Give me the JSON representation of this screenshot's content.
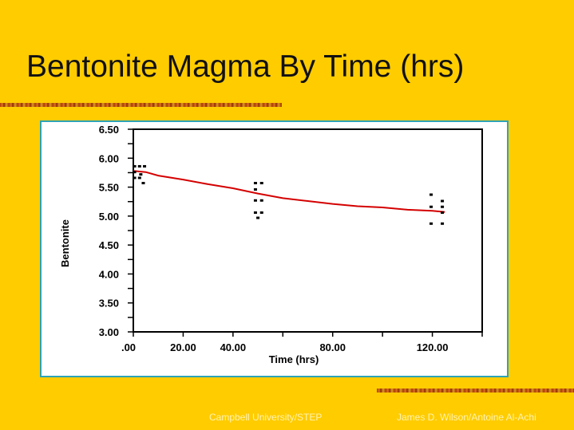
{
  "slide": {
    "title": "Bentonite Magma By Time (hrs)",
    "footer_left": "Campbell University/STEP",
    "footer_right": "James D. Wilson/Antoine Al-Achi"
  },
  "colors": {
    "background": "#FFCC00",
    "frame_border": "#2EA3B5",
    "fit_line": "#D40000",
    "points": "#000000"
  },
  "chart_data": {
    "type": "scatter",
    "xlabel": "Time (hrs)",
    "ylabel": "Bentonite",
    "xlim": [
      0,
      140
    ],
    "ylim": [
      3.0,
      6.5
    ],
    "x_tick_labels": [
      {
        "value": 0,
        "label": ".00"
      },
      {
        "value": 20,
        "label": "20.00"
      },
      {
        "value": 40,
        "label": "40.00"
      },
      {
        "value": 80,
        "label": "80.00"
      },
      {
        "value": 120,
        "label": "120.00"
      }
    ],
    "x_major_ticks": [
      0,
      20,
      40,
      60,
      80,
      100,
      120,
      140
    ],
    "y_tick_labels": [
      {
        "value": 6.5,
        "label": "6.50"
      },
      {
        "value": 6.0,
        "label": "6.00"
      },
      {
        "value": 5.5,
        "label": "5.50"
      },
      {
        "value": 5.0,
        "label": "5.00"
      },
      {
        "value": 4.5,
        "label": "4.50"
      },
      {
        "value": 4.0,
        "label": "4.00"
      },
      {
        "value": 3.5,
        "label": "3.50"
      },
      {
        "value": 3.0,
        "label": "3.00"
      }
    ],
    "y_minor_step": 0.25,
    "points": [
      {
        "x": 0.5,
        "y": 5.86
      },
      {
        "x": 2.5,
        "y": 5.86
      },
      {
        "x": 4.5,
        "y": 5.86
      },
      {
        "x": 0.5,
        "y": 5.76
      },
      {
        "x": 3.0,
        "y": 5.72
      },
      {
        "x": 0.5,
        "y": 5.66
      },
      {
        "x": 2.5,
        "y": 5.66
      },
      {
        "x": 4.0,
        "y": 5.57
      },
      {
        "x": 49.0,
        "y": 5.57
      },
      {
        "x": 51.5,
        "y": 5.57
      },
      {
        "x": 49.0,
        "y": 5.46
      },
      {
        "x": 49.0,
        "y": 5.27
      },
      {
        "x": 51.5,
        "y": 5.27
      },
      {
        "x": 49.0,
        "y": 5.06
      },
      {
        "x": 51.5,
        "y": 5.06
      },
      {
        "x": 50.0,
        "y": 4.97
      },
      {
        "x": 119.5,
        "y": 5.37
      },
      {
        "x": 124.0,
        "y": 5.26
      },
      {
        "x": 119.5,
        "y": 5.16
      },
      {
        "x": 124.0,
        "y": 5.16
      },
      {
        "x": 124.0,
        "y": 5.06
      },
      {
        "x": 119.5,
        "y": 4.87
      },
      {
        "x": 124.0,
        "y": 4.87
      }
    ],
    "fit_line": [
      {
        "x": 0,
        "y": 5.78
      },
      {
        "x": 5,
        "y": 5.76
      },
      {
        "x": 10,
        "y": 5.7
      },
      {
        "x": 20,
        "y": 5.63
      },
      {
        "x": 30,
        "y": 5.55
      },
      {
        "x": 40,
        "y": 5.48
      },
      {
        "x": 50,
        "y": 5.39
      },
      {
        "x": 60,
        "y": 5.31
      },
      {
        "x": 70,
        "y": 5.26
      },
      {
        "x": 80,
        "y": 5.21
      },
      {
        "x": 90,
        "y": 5.17
      },
      {
        "x": 100,
        "y": 5.15
      },
      {
        "x": 110,
        "y": 5.11
      },
      {
        "x": 120,
        "y": 5.09
      },
      {
        "x": 125,
        "y": 5.07
      }
    ]
  }
}
